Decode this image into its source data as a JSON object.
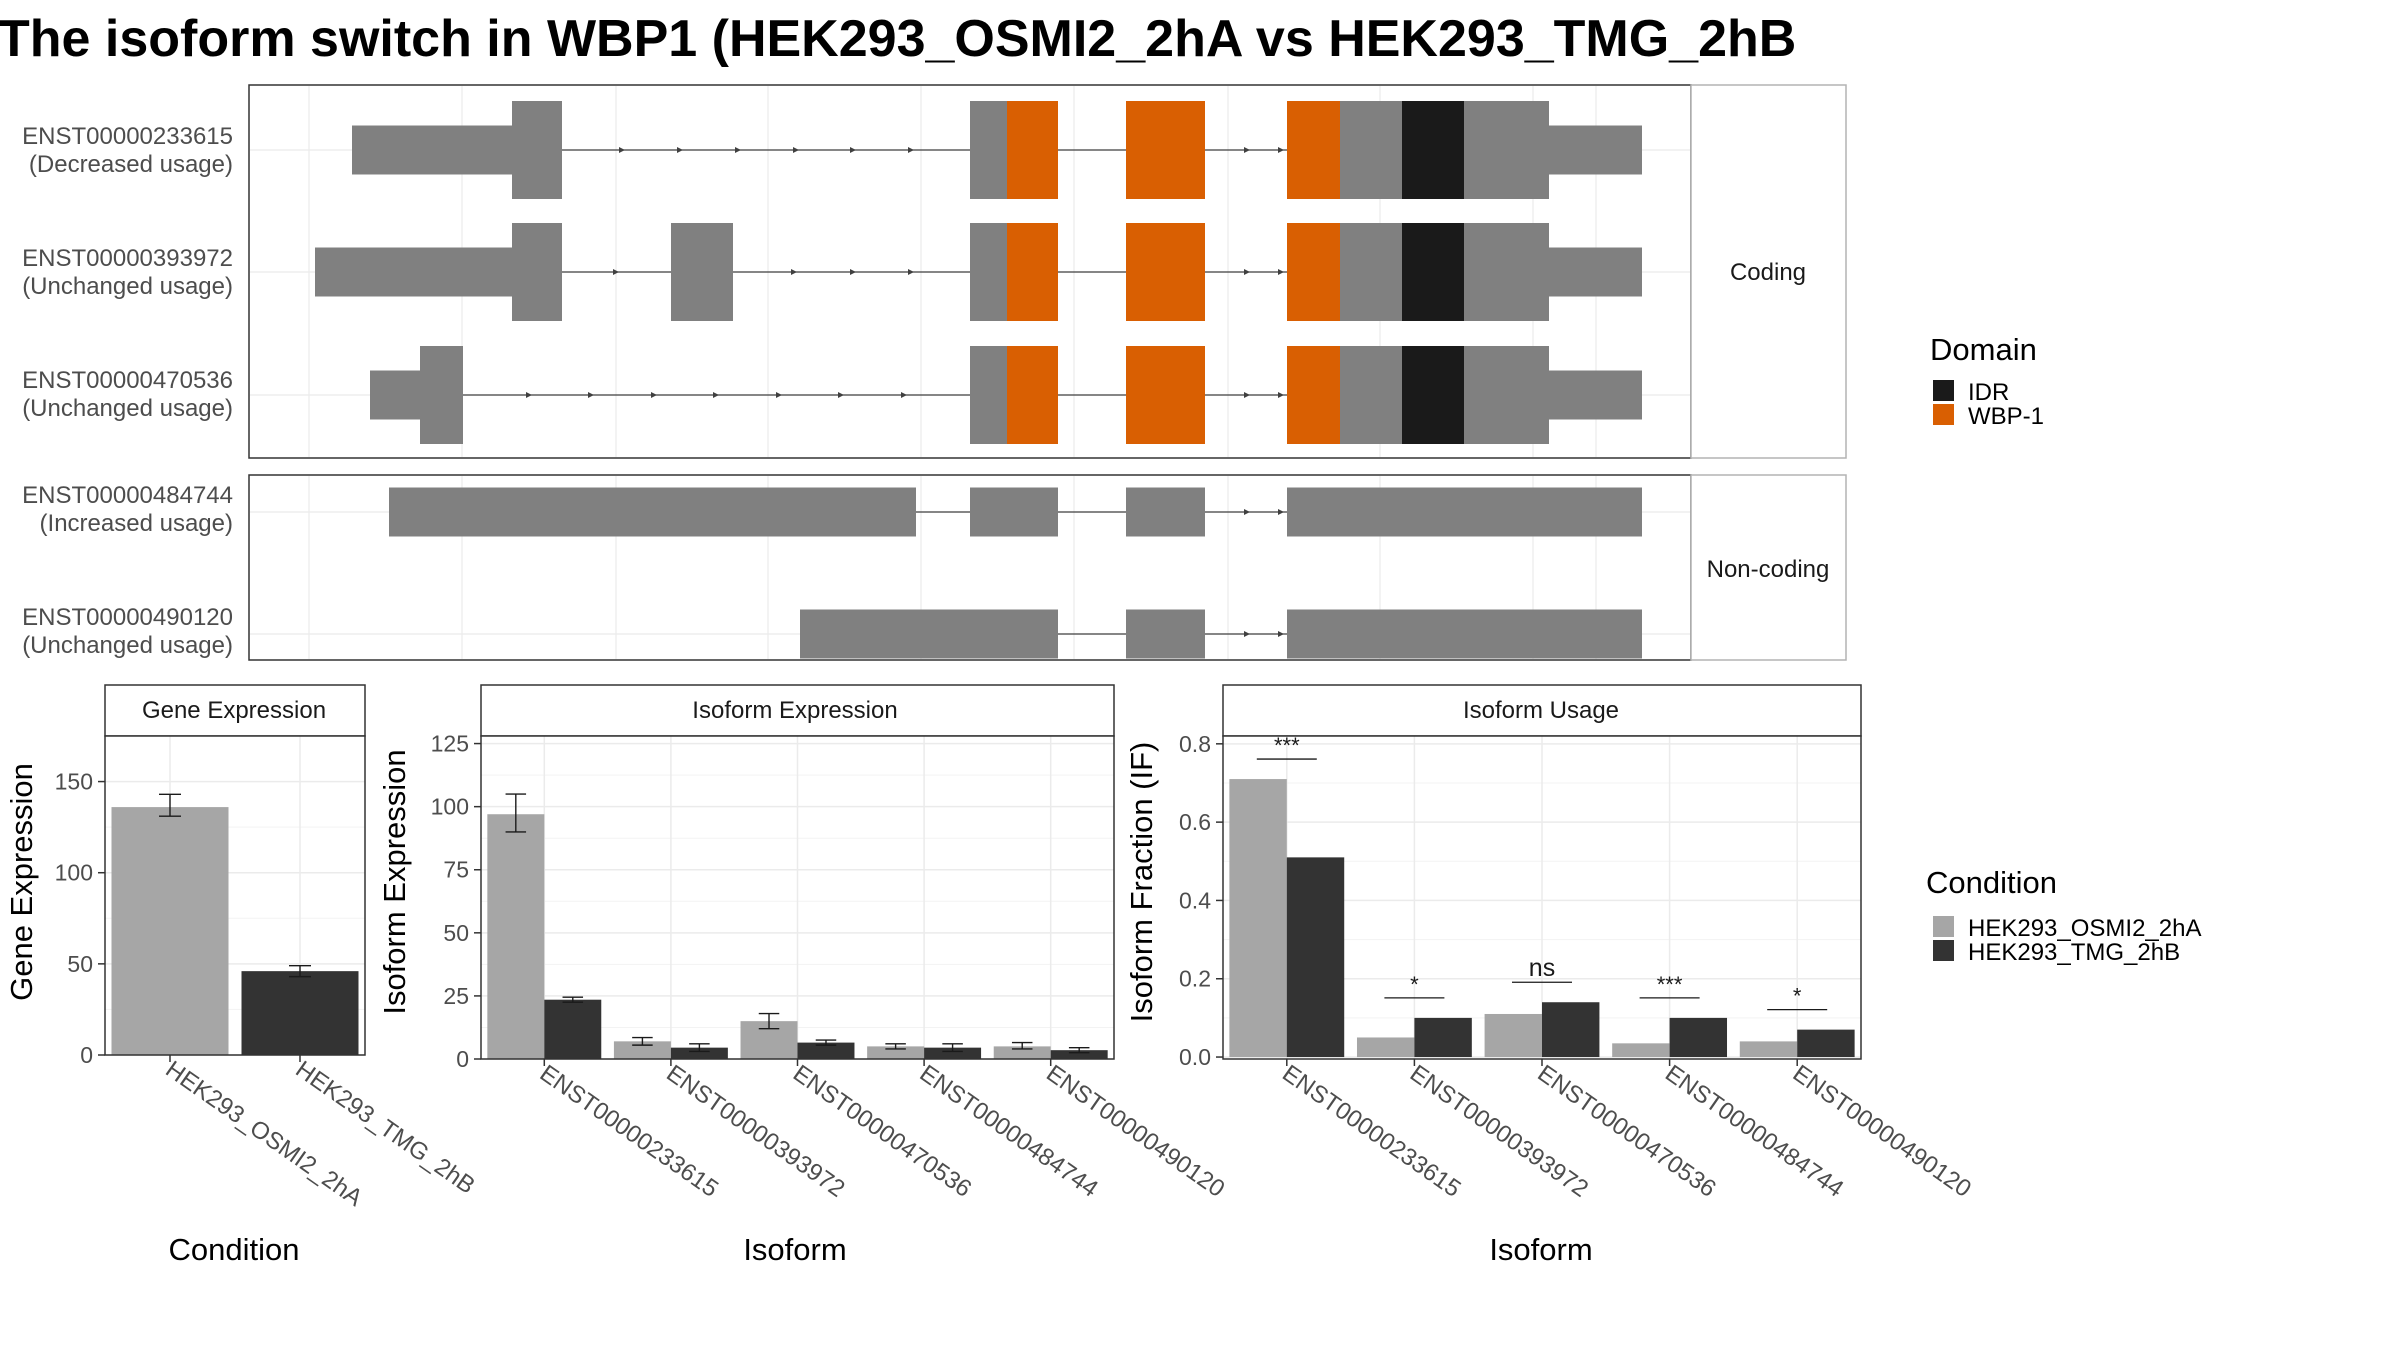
{
  "title": "The isoform switch in WBP1 (HEK293_OSMI2_2hA vs HEK293_TMG_2hB",
  "colors": {
    "exon": "#808080",
    "idr": "#1a1a1a",
    "wbp1": "#d95f02",
    "cond_a": "#a6a6a6",
    "cond_b": "#333333",
    "grid": "#ebebeb",
    "panel_border": "#333333"
  },
  "structure": {
    "coding_label": "Coding",
    "noncoding_label": "Non-coding",
    "coding": [
      {
        "id": "ENST00000233615",
        "usage": "(Decreased usage)"
      },
      {
        "id": "ENST00000393972",
        "usage": "(Unchanged usage)"
      },
      {
        "id": "ENST00000470536",
        "usage": "(Unchanged usage)"
      }
    ],
    "noncoding": [
      {
        "id": "ENST00000484744",
        "usage": "(Increased usage)"
      },
      {
        "id": "ENST00000490120",
        "usage": "(Unchanged usage)"
      }
    ]
  },
  "legends": {
    "domain_title": "Domain",
    "domain_items": [
      {
        "label": "IDR",
        "color": "#1a1a1a"
      },
      {
        "label": "WBP-1",
        "color": "#d95f02"
      }
    ],
    "condition_title": "Condition",
    "condition_items": [
      {
        "label": "HEK293_OSMI2_2hA",
        "color": "#a6a6a6"
      },
      {
        "label": "HEK293_TMG_2hB",
        "color": "#333333"
      }
    ]
  },
  "chart_data": [
    {
      "type": "bar",
      "title": "Gene Expression",
      "xlabel": "Condition",
      "ylabel": "Gene Expression",
      "categories": [
        "HEK293_OSMI2_2hA",
        "HEK293_TMG_2hB"
      ],
      "values": [
        136,
        46
      ],
      "errors": [
        [
          131,
          143
        ],
        [
          43,
          49
        ]
      ],
      "ylim": [
        0,
        175
      ],
      "yticks": [
        0,
        50,
        100,
        150
      ],
      "grid": true
    },
    {
      "type": "bar",
      "title": "Isoform Expression",
      "xlabel": "Isoform",
      "ylabel": "Isoform Expression",
      "categories": [
        "ENST00000233615",
        "ENST00000393972",
        "ENST00000470536",
        "ENST00000484744",
        "ENST00000490120"
      ],
      "series": [
        {
          "name": "HEK293_OSMI2_2hA",
          "values": [
            97,
            7,
            15,
            5,
            5
          ],
          "errors": [
            [
              90,
              105
            ],
            [
              5.5,
              8.5
            ],
            [
              12,
              18
            ],
            [
              4,
              6
            ],
            [
              4,
              6.5
            ]
          ]
        },
        {
          "name": "HEK293_TMG_2hB",
          "values": [
            23.5,
            4.5,
            6.5,
            4.5,
            3.5
          ],
          "errors": [
            [
              22.5,
              24.5
            ],
            [
              3,
              6
            ],
            [
              5.5,
              7.5
            ],
            [
              3,
              6
            ],
            [
              2.5,
              4.5
            ]
          ]
        }
      ],
      "ylim": [
        0,
        128
      ],
      "yticks": [
        0,
        25,
        50,
        75,
        100,
        125
      ],
      "grid": true
    },
    {
      "type": "bar",
      "title": "Isoform Usage",
      "xlabel": "Isoform",
      "ylabel": "Isoform Fraction (IF)",
      "categories": [
        "ENST00000233615",
        "ENST00000393972",
        "ENST00000470536",
        "ENST00000484744",
        "ENST00000490120"
      ],
      "series": [
        {
          "name": "HEK293_OSMI2_2hA",
          "values": [
            0.71,
            0.05,
            0.11,
            0.035,
            0.04
          ]
        },
        {
          "name": "HEK293_TMG_2hB",
          "values": [
            0.51,
            0.1,
            0.14,
            0.1,
            0.07
          ]
        }
      ],
      "significance": [
        "***",
        "*",
        "ns",
        "***",
        "*"
      ],
      "ylim": [
        -0.005,
        0.82
      ],
      "yticks": [
        0.0,
        0.2,
        0.4,
        0.6,
        0.8
      ],
      "ytick_labels": [
        "0.0",
        "0.2",
        "0.4",
        "0.6",
        "0.8"
      ],
      "grid": true
    }
  ]
}
